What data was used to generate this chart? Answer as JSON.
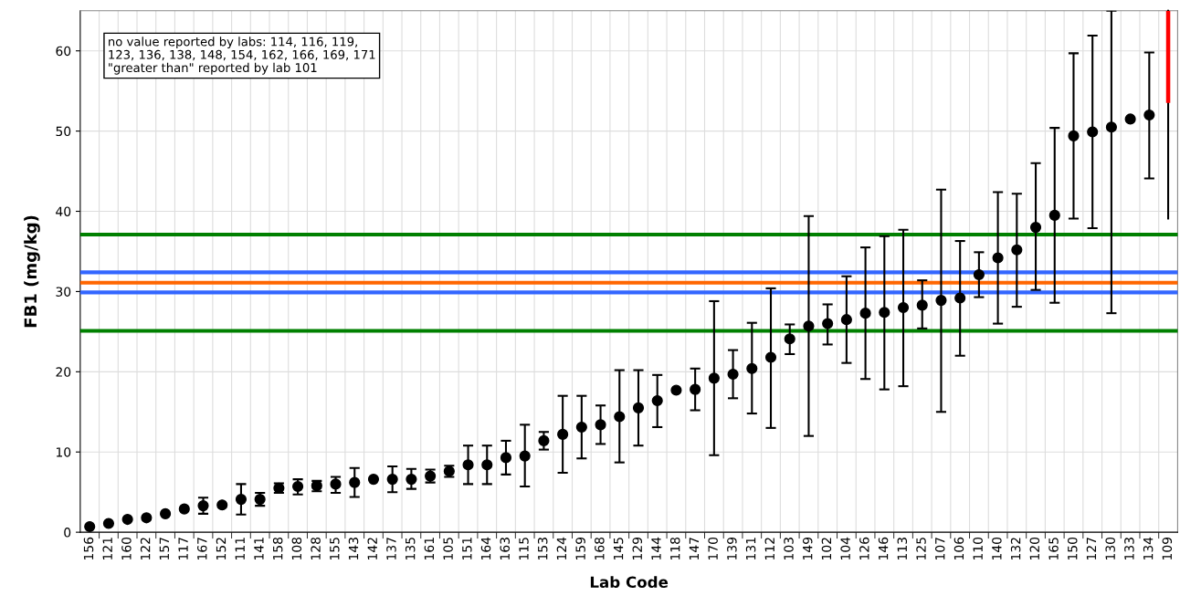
{
  "chart_data": {
    "type": "scatter",
    "xlabel": "Lab Code",
    "ylabel": "FB1 (mg/kg)",
    "categories": [
      "156",
      "121",
      "160",
      "122",
      "157",
      "117",
      "167",
      "152",
      "111",
      "141",
      "158",
      "108",
      "128",
      "155",
      "143",
      "142",
      "137",
      "135",
      "161",
      "105",
      "151",
      "164",
      "163",
      "115",
      "153",
      "124",
      "159",
      "168",
      "145",
      "129",
      "144",
      "118",
      "147",
      "170",
      "139",
      "131",
      "112",
      "103",
      "149",
      "102",
      "104",
      "126",
      "146",
      "113",
      "125",
      "107",
      "106",
      "110",
      "140",
      "132",
      "120",
      "165",
      "150",
      "127",
      "130",
      "133",
      "134",
      "109"
    ],
    "series": [
      {
        "color": "#000000",
        "marker": "circle",
        "values": [
          0.7,
          1.1,
          1.6,
          1.8,
          2.3,
          2.9,
          3.3,
          3.4,
          4.1,
          4.1,
          5.5,
          5.7,
          5.8,
          6.0,
          6.2,
          6.6,
          6.6,
          6.6,
          7.0,
          7.6,
          8.4,
          8.4,
          9.3,
          9.5,
          11.4,
          12.2,
          13.1,
          13.4,
          14.4,
          15.5,
          16.4,
          17.7,
          17.8,
          19.2,
          19.7,
          20.4,
          21.8,
          24.1,
          25.7,
          26.0,
          26.5,
          27.3,
          27.4,
          28.0,
          28.3,
          28.9,
          29.2,
          32.1,
          34.2,
          35.2,
          38.0,
          39.5,
          49.4,
          49.9,
          50.5,
          51.5,
          52.0,
          null
        ],
        "errors": [
          null,
          null,
          null,
          null,
          null,
          null,
          [
            2.3,
            4.3
          ],
          null,
          [
            2.2,
            6.0
          ],
          [
            3.3,
            4.9
          ],
          [
            4.9,
            6.1
          ],
          [
            4.7,
            6.6
          ],
          [
            5.1,
            6.4
          ],
          [
            4.9,
            6.9
          ],
          [
            4.4,
            8.0
          ],
          null,
          [
            5.0,
            8.2
          ],
          [
            5.4,
            7.9
          ],
          [
            6.2,
            7.8
          ],
          [
            6.9,
            8.3
          ],
          [
            6.0,
            10.8
          ],
          [
            6.0,
            10.8
          ],
          [
            7.2,
            11.4
          ],
          [
            5.7,
            13.4
          ],
          [
            10.3,
            12.5
          ],
          [
            7.4,
            17.0
          ],
          [
            9.2,
            17.0
          ],
          [
            11.0,
            15.8
          ],
          [
            8.7,
            20.2
          ],
          [
            10.8,
            20.2
          ],
          [
            13.1,
            19.6
          ],
          null,
          [
            15.2,
            20.4
          ],
          [
            9.6,
            28.8
          ],
          [
            16.7,
            22.7
          ],
          [
            14.8,
            26.1
          ],
          [
            13.0,
            30.4
          ],
          [
            22.2,
            25.9
          ],
          [
            12.0,
            39.4
          ],
          [
            23.4,
            28.4
          ],
          [
            21.1,
            31.9
          ],
          [
            19.1,
            35.5
          ],
          [
            17.8,
            36.9
          ],
          [
            18.2,
            37.7
          ],
          [
            25.4,
            31.4
          ],
          [
            15.0,
            42.7
          ],
          [
            22.0,
            36.3
          ],
          [
            29.3,
            34.9
          ],
          [
            26.0,
            42.4
          ],
          [
            28.1,
            42.2
          ],
          [
            30.2,
            46.0
          ],
          [
            28.6,
            50.4
          ],
          [
            39.1,
            59.7
          ],
          [
            37.9,
            61.9
          ],
          [
            27.3,
            65
          ],
          null,
          [
            44.1,
            59.8
          ],
          null
        ]
      },
      {
        "type": "line",
        "color": "#000000",
        "marker": "none",
        "x": [
          "109",
          "109"
        ],
        "values": [
          39.1,
          65
        ]
      },
      {
        "type": "bar",
        "color": "#ff0000",
        "base": [
          null,
          null,
          null,
          null,
          null,
          null,
          null,
          null,
          null,
          null,
          null,
          null,
          null,
          null,
          null,
          null,
          null,
          null,
          null,
          null,
          null,
          null,
          null,
          null,
          null,
          null,
          null,
          null,
          null,
          null,
          null,
          null,
          null,
          null,
          null,
          null,
          null,
          null,
          null,
          null,
          null,
          null,
          null,
          null,
          null,
          null,
          null,
          null,
          null,
          null,
          null,
          null,
          null,
          null,
          null,
          null,
          null,
          53.5
        ],
        "values": [
          null,
          null,
          null,
          null,
          null,
          null,
          null,
          null,
          null,
          null,
          null,
          null,
          null,
          null,
          null,
          null,
          null,
          null,
          null,
          null,
          null,
          null,
          null,
          null,
          null,
          null,
          null,
          null,
          null,
          null,
          null,
          null,
          null,
          null,
          null,
          null,
          null,
          null,
          null,
          null,
          null,
          null,
          null,
          null,
          null,
          null,
          null,
          null,
          null,
          null,
          null,
          null,
          null,
          null,
          null,
          null,
          null,
          11.5
        ]
      }
    ],
    "ref_lines": [
      {
        "axis": "y",
        "value": 37.1,
        "color": "#008000"
      },
      {
        "axis": "y",
        "value": 32.4,
        "color": "#3366ff"
      },
      {
        "axis": "y",
        "value": 31.1,
        "color": "#ff6600"
      },
      {
        "axis": "y",
        "value": 29.9,
        "color": "#3366ff"
      },
      {
        "axis": "y",
        "value": 25.1,
        "color": "#008000"
      }
    ],
    "annotations": [
      "no value reported by labs: 114, 116, 119,\n123, 136, 138, 148, 154, 162, 166, 169, 171\n\"greater than\" reported by lab 101"
    ],
    "ylim": [
      0,
      65
    ],
    "yticks": [
      0,
      10,
      20,
      30,
      40,
      50,
      60
    ],
    "grid": true,
    "legend": false
  }
}
